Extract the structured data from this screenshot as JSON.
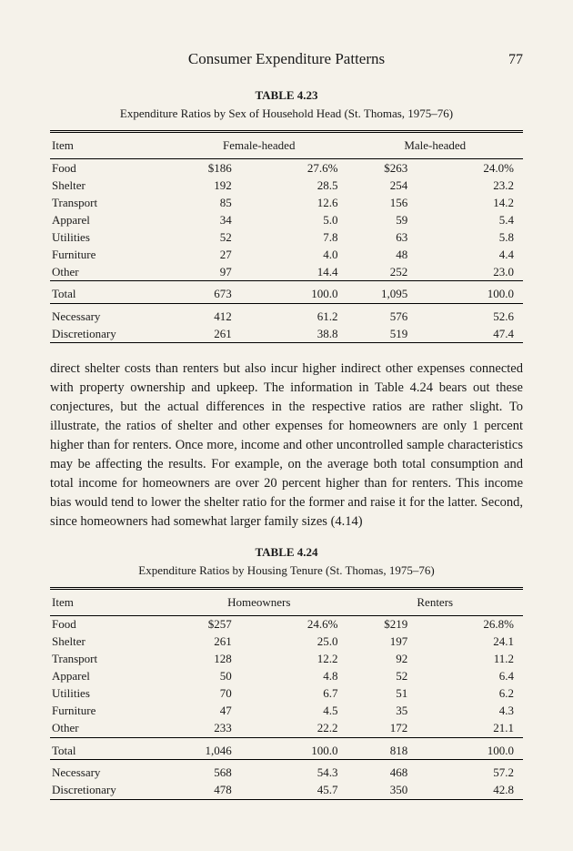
{
  "header": {
    "running_head": "Consumer Expenditure Patterns",
    "page_number": "77"
  },
  "table1": {
    "label": "TABLE 4.23",
    "caption": "Expenditure Ratios by Sex of Household Head (St. Thomas, 1975–76)",
    "col_item": "Item",
    "col_group1": "Female-headed",
    "col_group2": "Male-headed",
    "rows": [
      {
        "item": "Food",
        "a": "$186",
        "p": "27.6%",
        "b": "$263",
        "q": "24.0%"
      },
      {
        "item": "Shelter",
        "a": "192",
        "p": "28.5",
        "b": "254",
        "q": "23.2"
      },
      {
        "item": "Transport",
        "a": "85",
        "p": "12.6",
        "b": "156",
        "q": "14.2"
      },
      {
        "item": "Apparel",
        "a": "34",
        "p": "5.0",
        "b": "59",
        "q": "5.4"
      },
      {
        "item": "Utilities",
        "a": "52",
        "p": "7.8",
        "b": "63",
        "q": "5.8"
      },
      {
        "item": "Furniture",
        "a": "27",
        "p": "4.0",
        "b": "48",
        "q": "4.4"
      },
      {
        "item": "Other",
        "a": "97",
        "p": "14.4",
        "b": "252",
        "q": "23.0"
      }
    ],
    "total": {
      "item": "Total",
      "a": "673",
      "p": "100.0",
      "b": "1,095",
      "q": "100.0"
    },
    "nd": [
      {
        "item": "Necessary",
        "a": "412",
        "p": "61.2",
        "b": "576",
        "q": "52.6"
      },
      {
        "item": "Discretionary",
        "a": "261",
        "p": "38.8",
        "b": "519",
        "q": "47.4"
      }
    ]
  },
  "body": "direct shelter costs than renters but also incur higher indirect other expenses connected with property ownership and upkeep. The information in Table 4.24 bears out these conjectures, but the actual differences in the respective ratios are rather slight. To illustrate, the ratios of shelter and other expenses for homeowners are only 1 percent higher than for renters. Once more, income and other uncontrolled sample characteristics may be affecting the results. For example, on the average both total consumption and total income for homeowners are over 20 percent higher than for renters. This income bias would tend to lower the shelter ratio for the former and raise it for the latter. Second, since homeowners had somewhat larger family sizes (4.14)",
  "table2": {
    "label": "TABLE 4.24",
    "caption": "Expenditure Ratios by Housing Tenure (St. Thomas, 1975–76)",
    "col_item": "Item",
    "col_group1": "Homeowners",
    "col_group2": "Renters",
    "rows": [
      {
        "item": "Food",
        "a": "$257",
        "p": "24.6%",
        "b": "$219",
        "q": "26.8%"
      },
      {
        "item": "Shelter",
        "a": "261",
        "p": "25.0",
        "b": "197",
        "q": "24.1"
      },
      {
        "item": "Transport",
        "a": "128",
        "p": "12.2",
        "b": "92",
        "q": "11.2"
      },
      {
        "item": "Apparel",
        "a": "50",
        "p": "4.8",
        "b": "52",
        "q": "6.4"
      },
      {
        "item": "Utilities",
        "a": "70",
        "p": "6.7",
        "b": "51",
        "q": "6.2"
      },
      {
        "item": "Furniture",
        "a": "47",
        "p": "4.5",
        "b": "35",
        "q": "4.3"
      },
      {
        "item": "Other",
        "a": "233",
        "p": "22.2",
        "b": "172",
        "q": "21.1"
      }
    ],
    "total": {
      "item": "Total",
      "a": "1,046",
      "p": "100.0",
      "b": "818",
      "q": "100.0"
    },
    "nd": [
      {
        "item": "Necessary",
        "a": "568",
        "p": "54.3",
        "b": "468",
        "q": "57.2"
      },
      {
        "item": "Discretionary",
        "a": "478",
        "p": "45.7",
        "b": "350",
        "q": "42.8"
      }
    ]
  }
}
